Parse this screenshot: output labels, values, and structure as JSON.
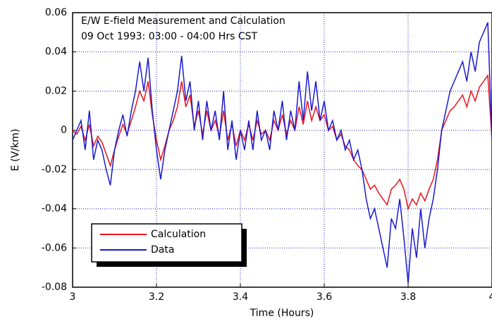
{
  "chart_data": {
    "type": "line",
    "title": "E/W E-field Measurement and Calculation",
    "subtitle": "09 Oct 1993:  03:00 - 04:00 Hrs CST",
    "x_label": "Time (Hours)",
    "y_label": "E (V/km)",
    "xlim": [
      3,
      4
    ],
    "ylim": [
      -0.08,
      0.06
    ],
    "xticks": [
      3,
      3.2,
      3.4,
      3.6,
      3.8,
      4
    ],
    "yticks": [
      0.06,
      0.04,
      0.02,
      0,
      -0.02,
      -0.04,
      -0.06,
      -0.08
    ],
    "grid": true,
    "legend": "lower left",
    "x": [
      3.0,
      3.01,
      3.02,
      3.03,
      3.04,
      3.05,
      3.06,
      3.07,
      3.08,
      3.09,
      3.1,
      3.11,
      3.12,
      3.13,
      3.14,
      3.15,
      3.16,
      3.17,
      3.18,
      3.19,
      3.2,
      3.21,
      3.22,
      3.23,
      3.24,
      3.25,
      3.26,
      3.27,
      3.28,
      3.29,
      3.3,
      3.31,
      3.32,
      3.33,
      3.34,
      3.35,
      3.36,
      3.37,
      3.38,
      3.39,
      3.4,
      3.41,
      3.42,
      3.43,
      3.44,
      3.45,
      3.46,
      3.47,
      3.48,
      3.49,
      3.5,
      3.51,
      3.52,
      3.53,
      3.54,
      3.55,
      3.56,
      3.57,
      3.58,
      3.59,
      3.6,
      3.61,
      3.62,
      3.63,
      3.64,
      3.65,
      3.66,
      3.67,
      3.68,
      3.69,
      3.7,
      3.71,
      3.72,
      3.73,
      3.74,
      3.75,
      3.76,
      3.77,
      3.78,
      3.79,
      3.8,
      3.81,
      3.82,
      3.83,
      3.84,
      3.85,
      3.86,
      3.87,
      3.88,
      3.89,
      3.9,
      3.91,
      3.92,
      3.93,
      3.94,
      3.95,
      3.96,
      3.97,
      3.98,
      3.99,
      4.0
    ],
    "series": [
      {
        "name": "Calculation",
        "color": "#e8141c",
        "values": [
          0.0,
          -0.002,
          0.002,
          -0.005,
          0.003,
          -0.008,
          -0.003,
          -0.006,
          -0.012,
          -0.018,
          -0.01,
          -0.003,
          0.003,
          -0.002,
          0.005,
          0.012,
          0.02,
          0.015,
          0.025,
          0.008,
          -0.005,
          -0.015,
          -0.008,
          0.0,
          0.005,
          0.012,
          0.025,
          0.012,
          0.018,
          0.002,
          0.01,
          -0.002,
          0.01,
          0.0,
          0.005,
          -0.003,
          0.01,
          -0.005,
          0.003,
          -0.008,
          0.0,
          -0.005,
          0.003,
          -0.005,
          0.005,
          -0.002,
          0.0,
          -0.005,
          0.005,
          0.0,
          0.008,
          -0.002,
          0.005,
          0.0,
          0.012,
          0.003,
          0.015,
          0.005,
          0.012,
          0.005,
          0.008,
          0.0,
          0.002,
          -0.005,
          -0.002,
          -0.008,
          -0.01,
          -0.015,
          -0.018,
          -0.02,
          -0.025,
          -0.03,
          -0.028,
          -0.032,
          -0.035,
          -0.038,
          -0.03,
          -0.028,
          -0.025,
          -0.03,
          -0.04,
          -0.035,
          -0.038,
          -0.032,
          -0.036,
          -0.03,
          -0.025,
          -0.015,
          0.0,
          0.005,
          0.01,
          0.012,
          0.015,
          0.018,
          0.012,
          0.02,
          0.015,
          0.022,
          0.025,
          0.028,
          -0.005
        ]
      },
      {
        "name": "Data",
        "color": "#1a1ad0",
        "values": [
          -0.005,
          0.0,
          0.005,
          -0.01,
          0.01,
          -0.015,
          -0.005,
          -0.01,
          -0.02,
          -0.028,
          -0.01,
          0.0,
          0.008,
          -0.003,
          0.01,
          0.02,
          0.035,
          0.02,
          0.037,
          0.01,
          -0.01,
          -0.025,
          -0.01,
          0.0,
          0.01,
          0.02,
          0.038,
          0.015,
          0.025,
          0.0,
          0.015,
          -0.005,
          0.015,
          0.0,
          0.01,
          -0.005,
          0.02,
          -0.01,
          0.005,
          -0.015,
          0.0,
          -0.01,
          0.005,
          -0.01,
          0.01,
          -0.005,
          0.0,
          -0.01,
          0.01,
          0.0,
          0.015,
          -0.005,
          0.01,
          0.0,
          0.025,
          0.005,
          0.03,
          0.01,
          0.025,
          0.005,
          0.015,
          0.0,
          0.005,
          -0.005,
          0.0,
          -0.01,
          -0.005,
          -0.015,
          -0.01,
          -0.02,
          -0.035,
          -0.045,
          -0.04,
          -0.05,
          -0.06,
          -0.07,
          -0.045,
          -0.05,
          -0.035,
          -0.055,
          -0.078,
          -0.05,
          -0.065,
          -0.04,
          -0.06,
          -0.045,
          -0.035,
          -0.02,
          0.0,
          0.01,
          0.02,
          0.025,
          0.03,
          0.035,
          0.025,
          0.04,
          0.03,
          0.045,
          0.05,
          0.055,
          -0.005
        ]
      }
    ]
  }
}
